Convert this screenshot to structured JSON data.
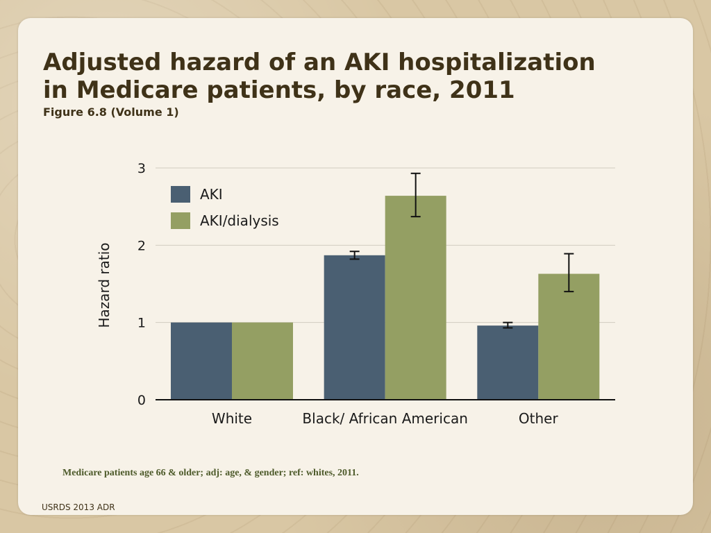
{
  "slide": {
    "title_line1": "Adjusted hazard of an AKI hospitalization",
    "title_line2": "in Medicare patients, by race, 2011",
    "subtitle": "Figure 6.8 (Volume 1)",
    "footnote": "Medicare patients age 66 & older; adj: age, & gender; ref: whites, 2011.",
    "source": "USRDS 2013 ADR"
  },
  "colors": {
    "aki": "#4a5f72",
    "aki_dialysis": "#949f63",
    "grid": "#d2ccc0",
    "axis": "#111111",
    "text": "#1a1a1a"
  },
  "chart_data": {
    "type": "bar",
    "categories": [
      "White",
      "Black/ African American",
      "Other"
    ],
    "series": [
      {
        "name": "AKI",
        "values": [
          1.0,
          1.87,
          0.96
        ],
        "error_low": [
          1.0,
          1.82,
          0.93
        ],
        "error_high": [
          1.0,
          1.92,
          1.0
        ]
      },
      {
        "name": "AKI/dialysis",
        "values": [
          1.0,
          2.64,
          1.63
        ],
        "error_low": [
          1.0,
          2.37,
          1.4
        ],
        "error_high": [
          1.0,
          2.93,
          1.89
        ]
      }
    ],
    "ylabel": "Hazard ratio",
    "xlabel": "",
    "ylim": [
      0,
      3
    ],
    "yticks": [
      0,
      1,
      2,
      3
    ],
    "grid": true,
    "legend_position": "top-left"
  }
}
